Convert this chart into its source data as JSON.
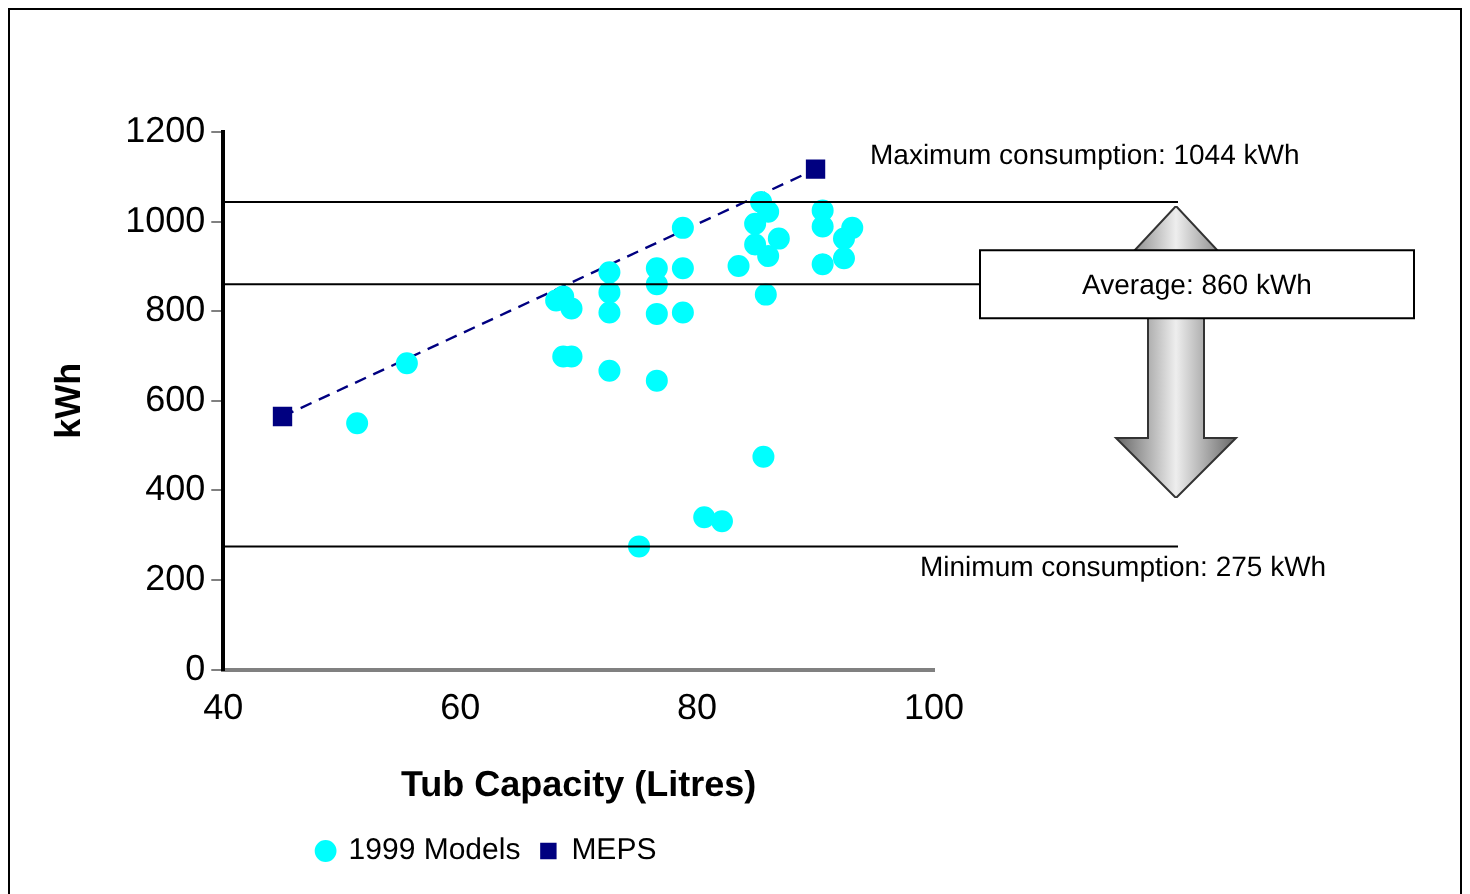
{
  "chart_data": {
    "type": "scatter",
    "xlabel": "Tub Capacity (Litres)",
    "ylabel": "kWh",
    "xlim": [
      40,
      100
    ],
    "xticks": [
      40,
      60,
      80,
      100
    ],
    "ylim": [
      0,
      1200
    ],
    "yticks": [
      0,
      200,
      400,
      600,
      800,
      1000,
      1200
    ],
    "grid": false,
    "legend": "bottom",
    "series": [
      {
        "name": "1999 Models",
        "type": "scatter",
        "marker": "circle",
        "color": "#00ffff",
        "x": [
          51.3,
          55.5,
          68.1,
          68.7,
          69.4,
          68.7,
          69.4,
          72.6,
          72.6,
          72.6,
          72.6,
          76.6,
          76.6,
          76.6,
          76.6,
          78.8,
          78.8,
          78.8,
          83.5,
          84.9,
          85.4,
          86.0,
          84.9,
          86.0,
          86.9,
          85.8,
          85.6,
          80.6,
          82.1,
          75.1,
          90.6,
          90.6,
          90.6,
          92.4,
          93.1,
          92.4
        ],
        "values": [
          550,
          684,
          824,
          833,
          806,
          699,
          699,
          887,
          842,
          797,
          667,
          896,
          860,
          794,
          645,
          986,
          896,
          797,
          901,
          995,
          1044,
          1022,
          949,
          923,
          962,
          837,
          475,
          340,
          331,
          275,
          1025,
          989,
          905,
          962,
          986,
          918
        ]
      },
      {
        "name": "MEPS",
        "type": "line",
        "marker": "square",
        "line_style": "dashed",
        "color": "#000080",
        "x": [
          45,
          90
        ],
        "values": [
          565,
          1117
        ]
      }
    ],
    "ref_lines": [
      {
        "axis": "y",
        "value": 1044,
        "label": "Maximum consumption: 1044 kWh",
        "color": "#000000"
      },
      {
        "axis": "y",
        "value": 860,
        "label": "Average: 860 kWh",
        "color": "#000000"
      },
      {
        "axis": "y",
        "value": 275,
        "label": "Minimum consumption: 275 kWh",
        "color": "#000000"
      }
    ]
  }
}
